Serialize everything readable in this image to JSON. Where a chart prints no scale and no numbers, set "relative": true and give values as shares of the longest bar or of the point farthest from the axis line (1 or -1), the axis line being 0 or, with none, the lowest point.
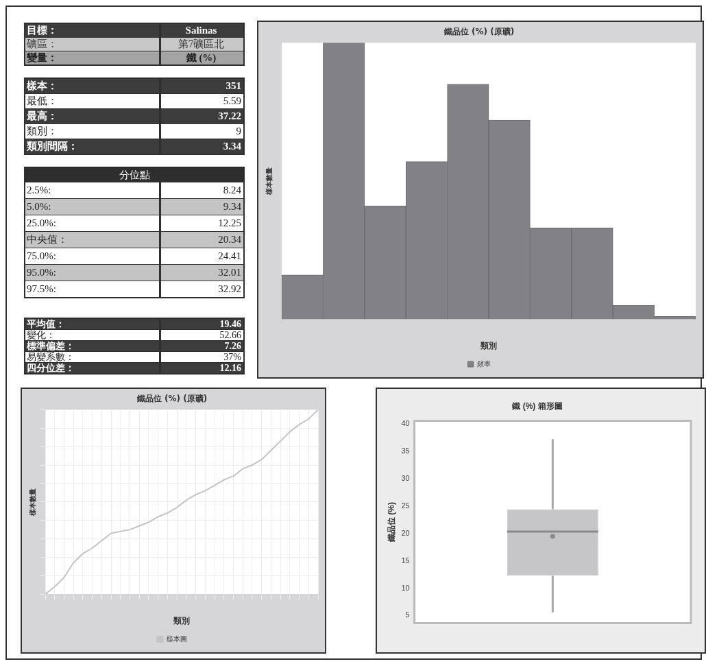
{
  "chart_data": [
    {
      "type": "other",
      "annotations": [
        "目標：",
        "Salinas",
        "礦區：",
        "第7礦區北",
        "變量：",
        "鐵 (%)"
      ]
    },
    {
      "type": "other",
      "annotations": [
        "樣本：",
        "351",
        "最低：",
        "5.59",
        "最高：",
        "37.22",
        "類別：",
        "9",
        "類別間隔：",
        "3.34"
      ]
    },
    {
      "type": "other",
      "title": "分位點",
      "annotations": [
        "2.5%:",
        "8.24",
        "5.0%:",
        "9.34",
        "25.0%:",
        "12.25",
        "中央值：",
        "20.34",
        "75.0%:",
        "24.41",
        "95.0%:",
        "32.01",
        "97.5%:",
        "32.92"
      ]
    },
    {
      "type": "other",
      "annotations": [
        "平均值：",
        "19.46",
        "變化：",
        "52.66",
        "標準偏差：",
        "7.26",
        "易變系數：",
        "37%",
        "四分位差：",
        "12.16"
      ]
    },
    {
      "type": "bar",
      "title": "鐵品位 (%) (原礦)",
      "xlabel": "類別",
      "ylabel": "樣本數量",
      "relative": true,
      "legend": "bottom",
      "categories": [
        null,
        null,
        null,
        null,
        null,
        null,
        null,
        null,
        null,
        null
      ],
      "series": [
        {
          "name": "頻率",
          "color": "#828286",
          "values": [
            0.16,
            1,
            0.41,
            0.57,
            0.85,
            0.72,
            0.33,
            0.33,
            0.05,
            0.01
          ]
        }
      ]
    },
    {
      "type": "line",
      "title": "鐵品位 (%) (原礦)",
      "xlabel": "類別",
      "ylabel": "樣本數量",
      "relative": true,
      "legend": "bottom",
      "marker": "none",
      "grid": true,
      "categories": [
        null,
        null,
        null,
        null,
        null,
        null,
        null,
        null,
        null,
        null,
        null,
        null,
        null,
        null,
        null,
        null,
        null,
        null,
        null,
        null,
        null,
        null,
        null,
        null,
        null,
        null,
        null,
        null,
        null,
        null
      ],
      "series": [
        {
          "name": "樣本圖",
          "color": "#c4c4c4",
          "values": [
            0,
            0.04,
            0.09,
            0.17,
            0.22,
            0.25,
            0.29,
            0.33,
            0.34,
            0.35,
            0.37,
            0.39,
            0.42,
            0.44,
            0.47,
            0.51,
            0.54,
            0.56,
            0.59,
            0.62,
            0.64,
            0.68,
            0.7,
            0.73,
            0.78,
            0.83,
            0.88,
            0.92,
            0.95,
            1
          ]
        }
      ]
    },
    {
      "type": "box",
      "title": "鐵 (%) 箱形圖",
      "ylabel": "鐵品位 (%)",
      "categories": [
        null
      ],
      "color": "#c6c6c8",
      "ylim": [
        3.6,
        40.6
      ],
      "yticks": [
        5,
        10,
        15,
        20,
        25,
        30,
        35,
        40
      ],
      "boxes": [
        {
          "low": 5.59,
          "q1": 12.25,
          "median": 20.34,
          "q3": 24.41,
          "high": 37.22,
          "mean": 19.46
        }
      ]
    }
  ]
}
